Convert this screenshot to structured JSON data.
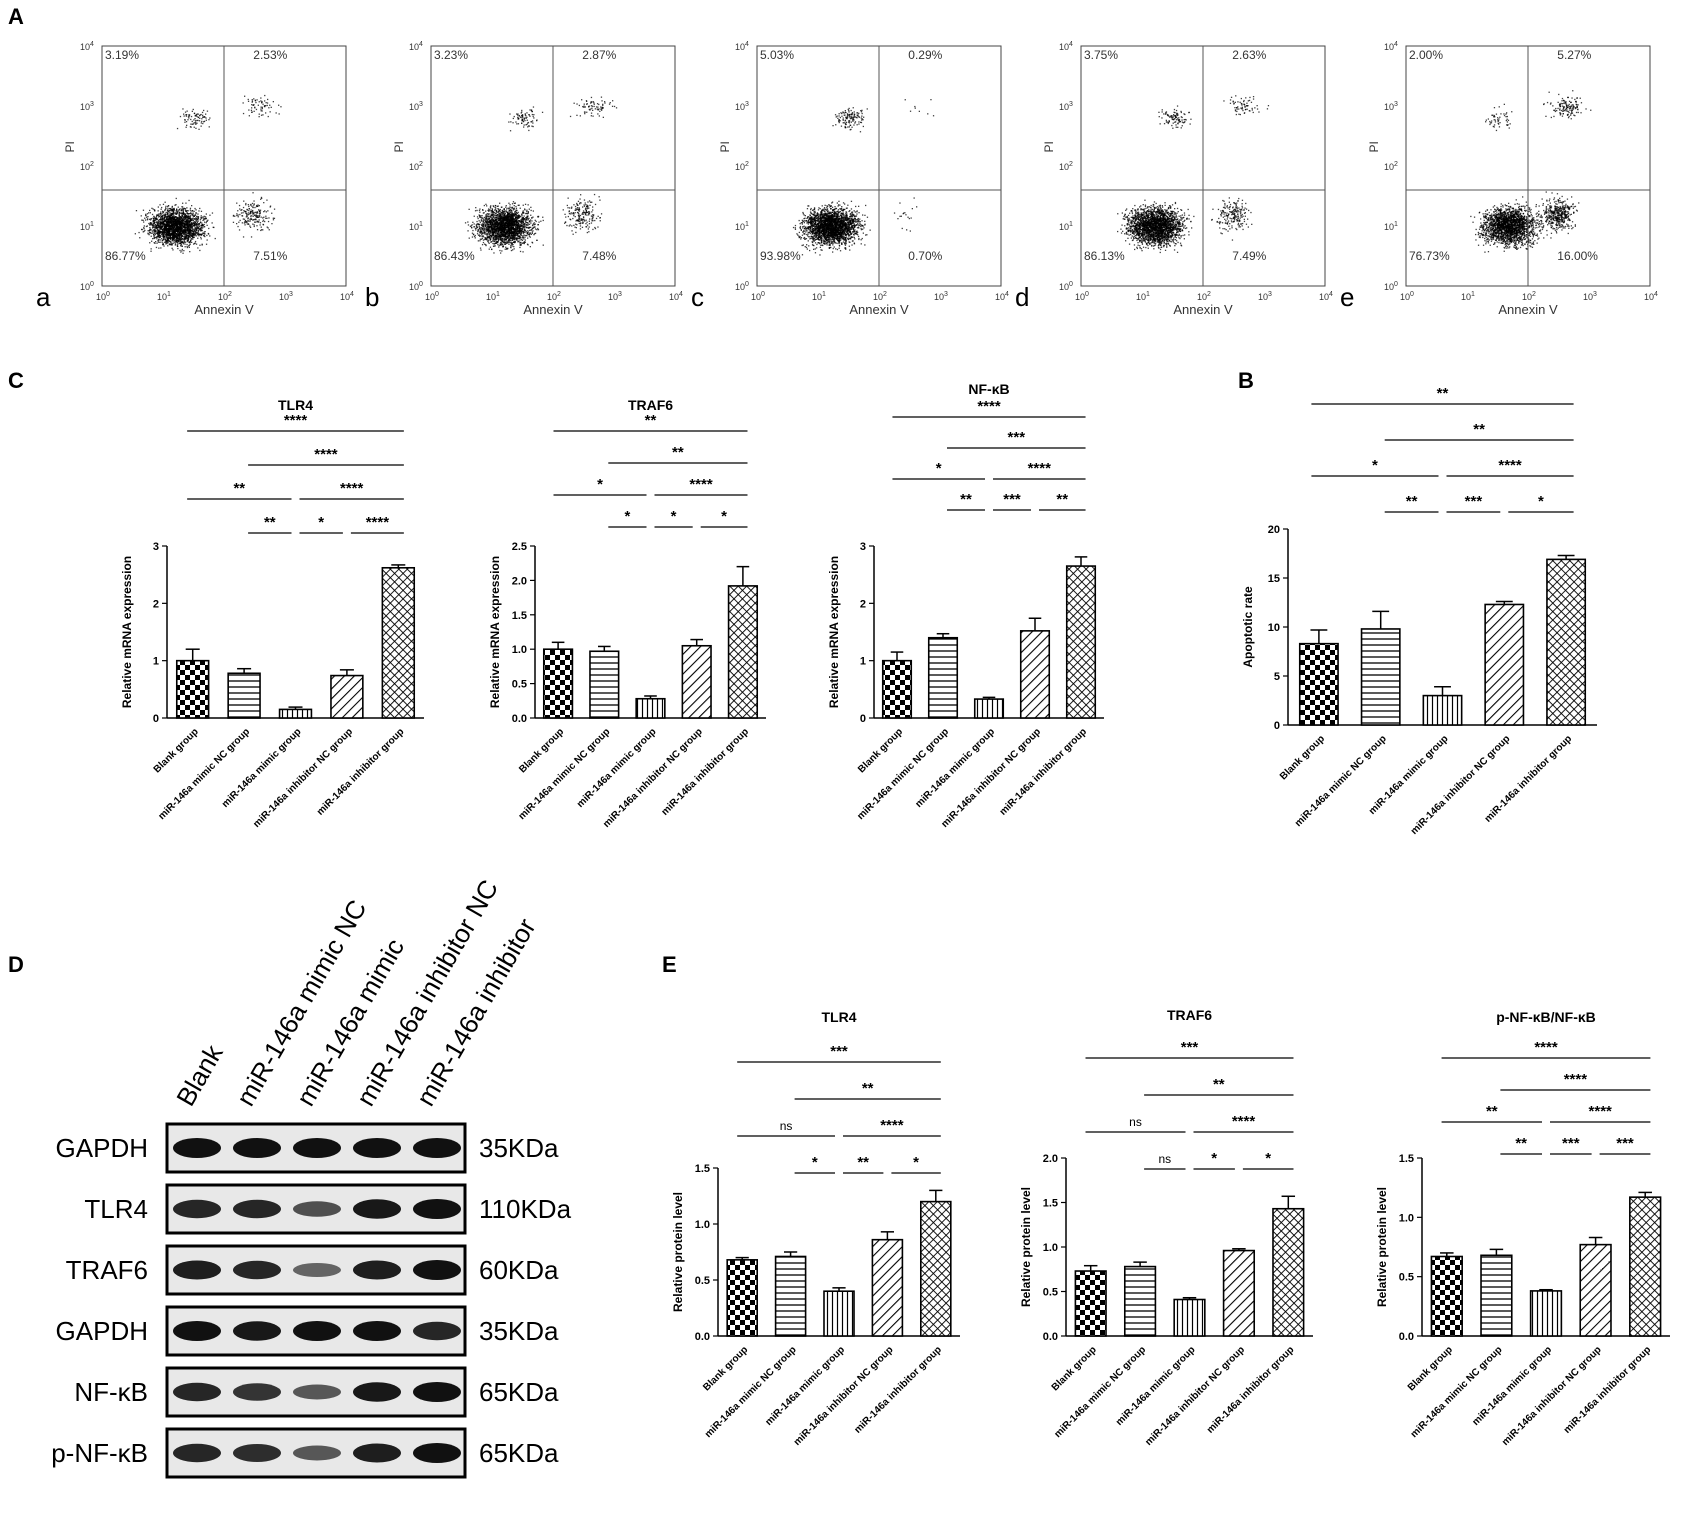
{
  "panel_letters": {
    "A": "A",
    "B": "B",
    "C": "C",
    "D": "D",
    "E": "E"
  },
  "patterns": {
    "blank": "check",
    "mimic_nc": "hlines",
    "mimic": "vlines",
    "inhibitor_nc": "diag",
    "inhibitor": "crosshatch"
  },
  "flow_axis": {
    "xlabel": "Annexin V",
    "ylabel": "PI",
    "ticks": [
      {
        "base": "10",
        "exp": "0"
      },
      {
        "base": "10",
        "exp": "1"
      },
      {
        "base": "10",
        "exp": "2"
      },
      {
        "base": "10",
        "exp": "3"
      },
      {
        "base": "10",
        "exp": "4"
      }
    ]
  },
  "flow_plots": [
    {
      "label": "a",
      "ul": "3.19%",
      "ur": "2.53%",
      "ll": "86.77%",
      "lr": "7.51%"
    },
    {
      "label": "b",
      "ul": "3.23%",
      "ur": "2.87%",
      "ll": "86.43%",
      "lr": "7.48%"
    },
    {
      "label": "c",
      "ul": "5.03%",
      "ur": "0.29%",
      "ll": "93.98%",
      "lr": "0.70%"
    },
    {
      "label": "d",
      "ul": "3.75%",
      "ur": "2.63%",
      "ll": "86.13%",
      "lr": "7.49%"
    },
    {
      "label": "e",
      "ul": "2.00%",
      "ur": "5.27%",
      "ll": "76.73%",
      "lr": "16.00%"
    }
  ],
  "chart_data": [
    {
      "type": "bar",
      "panel": "C",
      "title": "TLR4",
      "ylabel": "Relative mRNA expression",
      "categories": [
        "Blank group",
        "miR-146a mimic NC group",
        "miR-146a mimic group",
        "miR-146a inhibitor NC group",
        "miR-146a inhibitor group"
      ],
      "values": [
        1.0,
        0.78,
        0.15,
        0.74,
        2.62
      ],
      "errors": [
        0.2,
        0.08,
        0.04,
        0.1,
        0.05
      ],
      "ylim": [
        0,
        3
      ],
      "yticks": [
        "0",
        "1",
        "2",
        "3"
      ],
      "significance": [
        {
          "from": 0,
          "to": 4,
          "label": "****"
        },
        {
          "from": 1,
          "to": 4,
          "label": "****"
        },
        {
          "from": 0,
          "to": 2,
          "label": "**"
        },
        {
          "from": 2,
          "to": 4,
          "label": "****"
        },
        {
          "from": 1,
          "to": 2,
          "label": "**"
        },
        {
          "from": 2,
          "to": 3,
          "label": "*"
        },
        {
          "from": 3,
          "to": 4,
          "label": "****"
        }
      ]
    },
    {
      "type": "bar",
      "panel": "C",
      "title": "TRAF6",
      "ylabel": "Relative mRNA expression",
      "categories": [
        "Blank group",
        "miR-146a mimic NC group",
        "miR-146a mimic group",
        "miR-146a inhibitor NC group",
        "miR-146a inhibitor group"
      ],
      "values": [
        1.0,
        0.97,
        0.28,
        1.05,
        1.92
      ],
      "errors": [
        0.1,
        0.07,
        0.04,
        0.09,
        0.28
      ],
      "ylim": [
        0,
        2.5
      ],
      "yticks": [
        "0.0",
        "0.5",
        "1.0",
        "1.5",
        "2.0",
        "2.5"
      ],
      "significance": [
        {
          "from": 0,
          "to": 4,
          "label": "**"
        },
        {
          "from": 1,
          "to": 4,
          "label": "**"
        },
        {
          "from": 0,
          "to": 2,
          "label": "*"
        },
        {
          "from": 2,
          "to": 4,
          "label": "****"
        },
        {
          "from": 1,
          "to": 2,
          "label": "*"
        },
        {
          "from": 2,
          "to": 3,
          "label": "*"
        },
        {
          "from": 3,
          "to": 4,
          "label": "*"
        }
      ]
    },
    {
      "type": "bar",
      "panel": "C",
      "title": "NF-κB",
      "ylabel": "Relative mRNA expression",
      "categories": [
        "Blank group",
        "miR-146a mimic NC group",
        "miR-146a mimic group",
        "miR-146a inhibitor NC group",
        "miR-146a inhibitor group"
      ],
      "values": [
        1.0,
        1.4,
        0.33,
        1.52,
        2.65
      ],
      "errors": [
        0.15,
        0.07,
        0.03,
        0.22,
        0.16
      ],
      "ylim": [
        0,
        3
      ],
      "yticks": [
        "0",
        "1",
        "2",
        "3"
      ],
      "significance": [
        {
          "from": 0,
          "to": 4,
          "label": "****"
        },
        {
          "from": 1,
          "to": 4,
          "label": "***"
        },
        {
          "from": 0,
          "to": 2,
          "label": "*"
        },
        {
          "from": 2,
          "to": 4,
          "label": "****"
        },
        {
          "from": 1,
          "to": 2,
          "label": "**"
        },
        {
          "from": 2,
          "to": 3,
          "label": "***"
        },
        {
          "from": 3,
          "to": 4,
          "label": "**"
        }
      ]
    },
    {
      "type": "bar",
      "panel": "B",
      "title": "",
      "ylabel": "Apoptotic rate",
      "categories": [
        "Blank group",
        "miR-146a mimic NC group",
        "miR-146a mimic group",
        "miR-146a inhibitor NC group",
        "miR-146a inhibitor group"
      ],
      "values": [
        8.3,
        9.8,
        3.0,
        12.3,
        16.9
      ],
      "errors": [
        1.4,
        1.8,
        0.9,
        0.3,
        0.4
      ],
      "ylim": [
        0,
        20
      ],
      "yticks": [
        "0",
        "5",
        "10",
        "15",
        "20"
      ],
      "significance": [
        {
          "from": 0,
          "to": 4,
          "label": "**"
        },
        {
          "from": 1,
          "to": 4,
          "label": "**"
        },
        {
          "from": 0,
          "to": 2,
          "label": "*"
        },
        {
          "from": 2,
          "to": 4,
          "label": "****"
        },
        {
          "from": 1,
          "to": 2,
          "label": "**"
        },
        {
          "from": 2,
          "to": 3,
          "label": "***"
        },
        {
          "from": 3,
          "to": 4,
          "label": "*"
        }
      ]
    },
    {
      "type": "bar",
      "panel": "E",
      "title": "TLR4",
      "ylabel": "Relative protein level",
      "categories": [
        "Blank group",
        "miR-146a mimic NC group",
        "miR-146a mimic group",
        "miR-146a inhibitor NC group",
        "miR-146a inhibitor group"
      ],
      "values": [
        0.68,
        0.71,
        0.4,
        0.86,
        1.2
      ],
      "errors": [
        0.02,
        0.04,
        0.03,
        0.07,
        0.1
      ],
      "ylim": [
        0,
        1.5
      ],
      "yticks": [
        "0.0",
        "0.5",
        "1.0",
        "1.5"
      ],
      "significance": [
        {
          "from": 0,
          "to": 4,
          "label": "***"
        },
        {
          "from": 1,
          "to": 4,
          "label": "**"
        },
        {
          "from": 0,
          "to": 2,
          "label": "ns"
        },
        {
          "from": 2,
          "to": 4,
          "label": "****"
        },
        {
          "from": 1,
          "to": 2,
          "label": "*"
        },
        {
          "from": 2,
          "to": 3,
          "label": "**"
        },
        {
          "from": 3,
          "to": 4,
          "label": "*"
        }
      ]
    },
    {
      "type": "bar",
      "panel": "E",
      "title": "TRAF6",
      "ylabel": "Relative protein level",
      "categories": [
        "Blank group",
        "miR-146a mimic NC group",
        "miR-146a mimic group",
        "miR-146a inhibitor NC group",
        "miR-146a inhibitor group"
      ],
      "values": [
        0.73,
        0.78,
        0.41,
        0.96,
        1.43
      ],
      "errors": [
        0.06,
        0.05,
        0.02,
        0.02,
        0.14
      ],
      "ylim": [
        0,
        2
      ],
      "yticks": [
        "0.0",
        "0.5",
        "1.0",
        "1.5",
        "2.0"
      ],
      "significance": [
        {
          "from": 0,
          "to": 4,
          "label": "***"
        },
        {
          "from": 1,
          "to": 4,
          "label": "**"
        },
        {
          "from": 0,
          "to": 2,
          "label": "ns"
        },
        {
          "from": 2,
          "to": 4,
          "label": "****"
        },
        {
          "from": 1,
          "to": 2,
          "label": "ns"
        },
        {
          "from": 2,
          "to": 3,
          "label": "*"
        },
        {
          "from": 3,
          "to": 4,
          "label": "*"
        }
      ]
    },
    {
      "type": "bar",
      "panel": "E",
      "title": "p-NF-κB/NF-κB",
      "ylabel": "Relative protein level",
      "categories": [
        "Blank group",
        "miR-146a mimic NC group",
        "miR-146a mimic group",
        "miR-146a inhibitor NC group",
        "miR-146a inhibitor group"
      ],
      "values": [
        0.67,
        0.68,
        0.38,
        0.77,
        1.17
      ],
      "errors": [
        0.03,
        0.05,
        0.01,
        0.06,
        0.04
      ],
      "ylim": [
        0,
        1.5
      ],
      "yticks": [
        "0.0",
        "0.5",
        "1.0",
        "1.5"
      ],
      "significance": [
        {
          "from": 0,
          "to": 4,
          "label": "****"
        },
        {
          "from": 1,
          "to": 4,
          "label": "****"
        },
        {
          "from": 0,
          "to": 2,
          "label": "**"
        },
        {
          "from": 2,
          "to": 4,
          "label": "****"
        },
        {
          "from": 1,
          "to": 2,
          "label": "**"
        },
        {
          "from": 2,
          "to": 3,
          "label": "***"
        },
        {
          "from": 3,
          "to": 4,
          "label": "***"
        }
      ]
    }
  ],
  "western_blot": {
    "lanes": [
      "Blank",
      "miR-146a mimic NC",
      "miR-146a mimic",
      "miR-146a inhibitor NC",
      "miR-146a inhibitor"
    ],
    "rows": [
      {
        "protein": "GAPDH",
        "size": "35KDa",
        "intensity": [
          1.0,
          1.0,
          1.0,
          1.0,
          1.0
        ]
      },
      {
        "protein": "TLR4",
        "size": "110KDa",
        "intensity": [
          0.85,
          0.85,
          0.55,
          0.95,
          1.0
        ]
      },
      {
        "protein": "TRAF6",
        "size": "60KDa",
        "intensity": [
          0.9,
          0.85,
          0.4,
          0.9,
          1.0
        ]
      },
      {
        "protein": "GAPDH",
        "size": "35KDa",
        "intensity": [
          1.0,
          0.95,
          1.0,
          1.0,
          0.85
        ]
      },
      {
        "protein": "NF-κB",
        "size": "65KDa",
        "intensity": [
          0.85,
          0.75,
          0.5,
          0.95,
          1.0
        ]
      },
      {
        "protein": "p-NF-κB",
        "size": "65KDa",
        "intensity": [
          0.85,
          0.8,
          0.5,
          0.9,
          1.0
        ]
      }
    ]
  }
}
